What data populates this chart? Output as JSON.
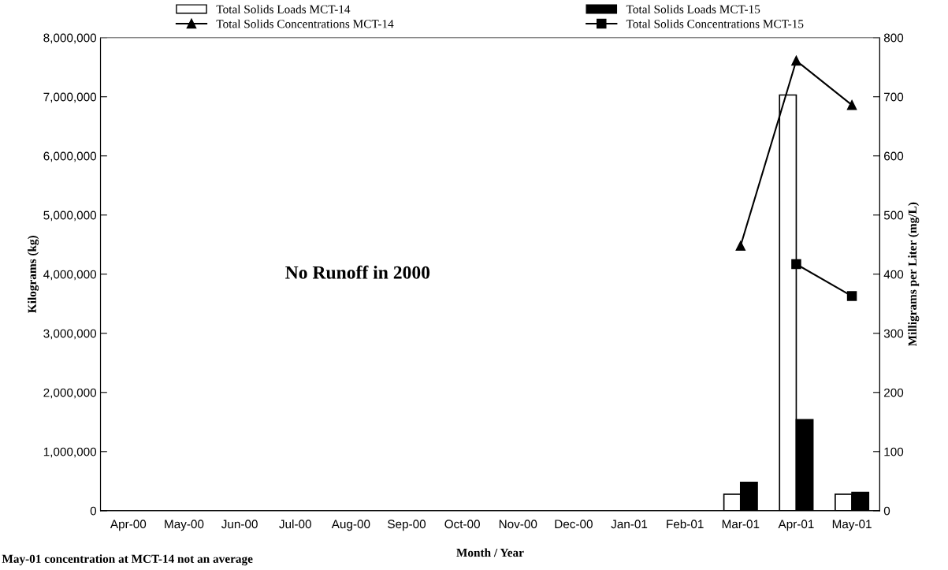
{
  "chart_data": {
    "type": "bar",
    "xlabel": "Month / Year",
    "ylabel": "Kilograms (kg)",
    "y2label": "Milligrams per Liter (mg/L)",
    "categories": [
      "Apr-00",
      "May-00",
      "Jun-00",
      "Jul-00",
      "Aug-00",
      "Sep-00",
      "Oct-00",
      "Nov-00",
      "Dec-00",
      "Jan-01",
      "Feb-01",
      "Mar-01",
      "Apr-01",
      "May-01"
    ],
    "series": [
      {
        "name": "Total Solids Loads MCT-14",
        "color": "#ffffff",
        "values": [
          null,
          null,
          null,
          null,
          null,
          null,
          null,
          null,
          null,
          null,
          null,
          280000,
          7030000,
          280000
        ]
      },
      {
        "name": "Total Solids Loads MCT-15",
        "color": "#000000",
        "values": [
          null,
          null,
          null,
          null,
          null,
          null,
          null,
          null,
          null,
          null,
          null,
          480000,
          1540000,
          310000
        ]
      },
      {
        "name": "Total Solids Concentrations MCT-14",
        "type": "line",
        "axis": "y2",
        "marker": "triangle",
        "color": "#000000",
        "values": [
          null,
          null,
          null,
          null,
          null,
          null,
          null,
          null,
          null,
          null,
          null,
          448,
          761,
          686
        ]
      },
      {
        "name": "Total Solids Concentrations MCT-15",
        "type": "line",
        "axis": "y2",
        "marker": "square",
        "color": "#000000",
        "values": [
          null,
          null,
          null,
          null,
          null,
          null,
          null,
          null,
          null,
          null,
          null,
          null,
          417,
          363
        ]
      }
    ],
    "ylim": [
      0,
      8000000
    ],
    "yticks": [
      {
        "value": 0,
        "label": "0"
      },
      {
        "value": 1000000,
        "label": "1,000,000"
      },
      {
        "value": 2000000,
        "label": "2,000,000"
      },
      {
        "value": 3000000,
        "label": "3,000,000"
      },
      {
        "value": 4000000,
        "label": "4,000,000"
      },
      {
        "value": 5000000,
        "label": "5,000,000"
      },
      {
        "value": 6000000,
        "label": "6,000,000"
      },
      {
        "value": 7000000,
        "label": "7,000,000"
      },
      {
        "value": 8000000,
        "label": "8,000,000"
      }
    ],
    "y2lim": [
      0,
      800
    ],
    "y2ticks": [
      0,
      100,
      200,
      300,
      400,
      500,
      600,
      700,
      800
    ],
    "annotations": [
      "No Runoff in 2000",
      "May-01 concentration at MCT-14 not an average"
    ],
    "legend": "top",
    "grid": false
  }
}
